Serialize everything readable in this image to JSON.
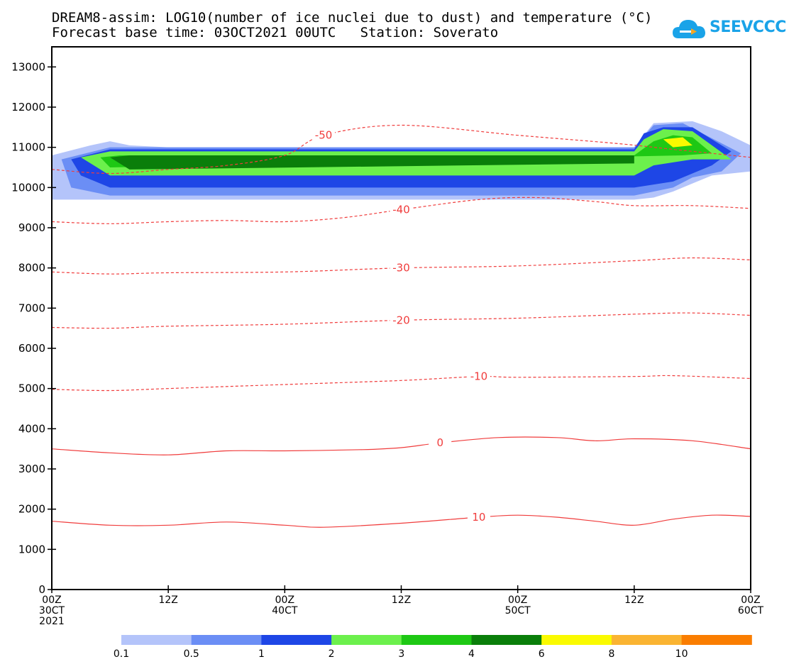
{
  "title_line1": "DREAM8-assim: LOG10(number of ice nuclei due to dust) and temperature (°C)",
  "title_line2": "Forecast base time: 03OCT2021 00UTC   Station: Soverato",
  "logo_text": "SEEVCCC",
  "chart_data": {
    "type": "contour",
    "title": "DREAM8-assim: LOG10(number of ice nuclei due to dust) and temperature (°C)",
    "subtitle": "Forecast base time: 03OCT2021 00UTC   Station: Soverato",
    "ylim": [
      0,
      13500
    ],
    "yticks": [
      0,
      1000,
      2000,
      3000,
      4000,
      5000,
      6000,
      7000,
      8000,
      9000,
      10000,
      11000,
      12000,
      13000
    ],
    "xlim_hours": [
      0,
      72
    ],
    "xticks": [
      {
        "h": 0,
        "l1": "00Z",
        "l2": "30CT",
        "l3": "2021"
      },
      {
        "h": 12,
        "l1": "12Z",
        "l2": "",
        "l3": ""
      },
      {
        "h": 24,
        "l1": "00Z",
        "l2": "40CT",
        "l3": ""
      },
      {
        "h": 36,
        "l1": "12Z",
        "l2": "",
        "l3": ""
      },
      {
        "h": 48,
        "l1": "00Z",
        "l2": "50CT",
        "l3": ""
      },
      {
        "h": 60,
        "l1": "12Z",
        "l2": "",
        "l3": ""
      },
      {
        "h": 72,
        "l1": "00Z",
        "l2": "60CT",
        "l3": ""
      }
    ],
    "colorbar": {
      "levels": [
        "0.1",
        "0.5",
        "1",
        "2",
        "3",
        "4",
        "6",
        "8",
        "10"
      ],
      "colors": [
        "#b4c4fa",
        "#6b8ef5",
        "#1e46e6",
        "#6cf04c",
        "#1ec814",
        "#0a7e0a",
        "#fafa00",
        "#fab432",
        "#fa7d00"
      ]
    },
    "temperature_contours": [
      {
        "label": "-50",
        "dashed": true,
        "points": [
          [
            0,
            10450
          ],
          [
            6,
            10350
          ],
          [
            12,
            10450
          ],
          [
            18,
            10550
          ],
          [
            24,
            10800
          ],
          [
            28,
            11300
          ],
          [
            36,
            11550
          ],
          [
            48,
            11300
          ],
          [
            58,
            11100
          ],
          [
            64,
            10950
          ],
          [
            72,
            10750
          ]
        ]
      },
      {
        "label": "-40",
        "dashed": true,
        "points": [
          [
            0,
            9150
          ],
          [
            6,
            9100
          ],
          [
            12,
            9150
          ],
          [
            18,
            9180
          ],
          [
            24,
            9150
          ],
          [
            30,
            9250
          ],
          [
            36,
            9450
          ],
          [
            44,
            9700
          ],
          [
            50,
            9750
          ],
          [
            56,
            9650
          ],
          [
            60,
            9550
          ],
          [
            66,
            9550
          ],
          [
            72,
            9480
          ]
        ]
      },
      {
        "label": "-30",
        "dashed": true,
        "points": [
          [
            0,
            7900
          ],
          [
            6,
            7850
          ],
          [
            12,
            7880
          ],
          [
            24,
            7900
          ],
          [
            36,
            8000
          ],
          [
            48,
            8050
          ],
          [
            60,
            8180
          ],
          [
            66,
            8250
          ],
          [
            72,
            8200
          ]
        ]
      },
      {
        "label": "-20",
        "dashed": true,
        "points": [
          [
            0,
            6520
          ],
          [
            6,
            6500
          ],
          [
            12,
            6550
          ],
          [
            24,
            6600
          ],
          [
            36,
            6700
          ],
          [
            48,
            6750
          ],
          [
            60,
            6850
          ],
          [
            66,
            6880
          ],
          [
            72,
            6820
          ]
        ]
      },
      {
        "label": "-10",
        "dashed": true,
        "points": [
          [
            0,
            4980
          ],
          [
            6,
            4950
          ],
          [
            12,
            5000
          ],
          [
            24,
            5100
          ],
          [
            36,
            5200
          ],
          [
            44,
            5300
          ],
          [
            48,
            5280
          ],
          [
            60,
            5300
          ],
          [
            64,
            5320
          ],
          [
            72,
            5250
          ]
        ]
      },
      {
        "label": "0",
        "dashed": false,
        "points": [
          [
            0,
            3500
          ],
          [
            6,
            3400
          ],
          [
            12,
            3350
          ],
          [
            18,
            3450
          ],
          [
            24,
            3450
          ],
          [
            32,
            3480
          ],
          [
            36,
            3530
          ],
          [
            40,
            3650
          ],
          [
            46,
            3780
          ],
          [
            52,
            3780
          ],
          [
            56,
            3700
          ],
          [
            60,
            3750
          ],
          [
            66,
            3700
          ],
          [
            72,
            3500
          ]
        ]
      },
      {
        "label": "10",
        "dashed": false,
        "points": [
          [
            0,
            1700
          ],
          [
            6,
            1600
          ],
          [
            12,
            1600
          ],
          [
            18,
            1680
          ],
          [
            24,
            1600
          ],
          [
            28,
            1550
          ],
          [
            36,
            1650
          ],
          [
            44,
            1800
          ],
          [
            48,
            1850
          ],
          [
            52,
            1800
          ],
          [
            56,
            1700
          ],
          [
            60,
            1600
          ],
          [
            64,
            1750
          ],
          [
            68,
            1850
          ],
          [
            72,
            1820
          ]
        ]
      }
    ],
    "ice_nuclei_fields": [
      {
        "level": "0.1",
        "polygon": [
          [
            0,
            10800
          ],
          [
            4,
            11050
          ],
          [
            6,
            11150
          ],
          [
            8,
            11050
          ],
          [
            12,
            11000
          ],
          [
            60,
            11000
          ],
          [
            61,
            11300
          ],
          [
            62,
            11600
          ],
          [
            66,
            11650
          ],
          [
            69,
            11400
          ],
          [
            72,
            11050
          ],
          [
            72,
            10400
          ],
          [
            68,
            10300
          ],
          [
            66,
            10100
          ],
          [
            64,
            9900
          ],
          [
            62,
            9750
          ],
          [
            60,
            9700
          ],
          [
            0,
            9700
          ],
          [
            0,
            9300
          ]
        ]
      },
      {
        "level": "0.5",
        "polygon": [
          [
            1,
            10700
          ],
          [
            6,
            11000
          ],
          [
            12,
            11000
          ],
          [
            60,
            11000
          ],
          [
            62,
            11550
          ],
          [
            65,
            11600
          ],
          [
            71,
            10850
          ],
          [
            69,
            10400
          ],
          [
            66,
            10250
          ],
          [
            64,
            10000
          ],
          [
            60,
            9800
          ],
          [
            6,
            9800
          ],
          [
            2,
            10000
          ]
        ]
      },
      {
        "level": "1",
        "polygon": [
          [
            2,
            10700
          ],
          [
            6,
            10950
          ],
          [
            60,
            10950
          ],
          [
            61,
            11350
          ],
          [
            63,
            11500
          ],
          [
            66,
            11500
          ],
          [
            70,
            10900
          ],
          [
            68,
            10550
          ],
          [
            64,
            10150
          ],
          [
            60,
            10000
          ],
          [
            6,
            10000
          ],
          [
            3,
            10300
          ]
        ]
      },
      {
        "level": "2",
        "polygon": [
          [
            3,
            10750
          ],
          [
            6,
            10900
          ],
          [
            60,
            10900
          ],
          [
            61,
            11200
          ],
          [
            63,
            11450
          ],
          [
            66,
            11400
          ],
          [
            70,
            10700
          ],
          [
            66,
            10700
          ],
          [
            62,
            10550
          ],
          [
            60,
            10300
          ],
          [
            6,
            10300
          ]
        ]
      },
      {
        "level": "3",
        "polygon": [
          [
            5,
            10750
          ],
          [
            7,
            10800
          ],
          [
            60,
            10800
          ],
          [
            62,
            11150
          ],
          [
            64,
            11300
          ],
          [
            66,
            11250
          ],
          [
            68,
            10850
          ],
          [
            65,
            10800
          ],
          [
            6,
            10500
          ]
        ]
      },
      {
        "level": "4",
        "polygon": [
          [
            6,
            10750
          ],
          [
            8,
            10800
          ],
          [
            60,
            10800
          ],
          [
            60,
            10600
          ],
          [
            8,
            10450
          ]
        ]
      },
      {
        "level": "6",
        "polygon": [
          [
            63,
            11200
          ],
          [
            65,
            11250
          ],
          [
            66,
            11050
          ],
          [
            64,
            11000
          ]
        ]
      }
    ]
  }
}
